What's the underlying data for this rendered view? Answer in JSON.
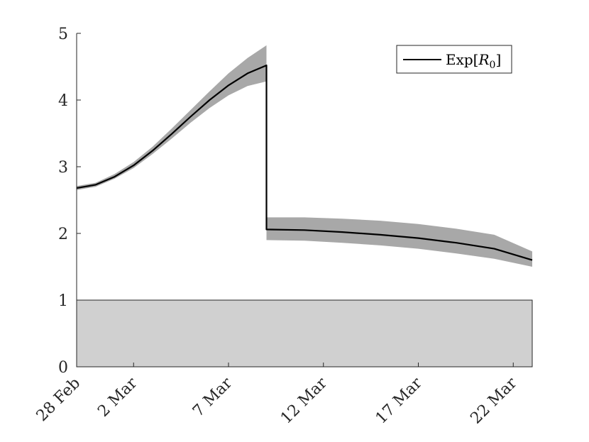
{
  "chart_data": {
    "type": "line",
    "title": "",
    "xlabel": "",
    "ylabel": "",
    "ylim": [
      0,
      5
    ],
    "yticks": [
      "0",
      "1",
      "2",
      "3",
      "4",
      "5"
    ],
    "xticks": [
      "28 Feb",
      "2 Mar",
      "7 Mar",
      "12 Mar",
      "17 Mar",
      "22 Mar"
    ],
    "grid": false,
    "legend_position": "top-right",
    "colors": {
      "line": "#000000",
      "band": "#a8a8a8",
      "threshold_region": "#d0d0d0",
      "axis": "#262626"
    },
    "threshold_region": {
      "from": 0,
      "to": 1
    },
    "series": [
      {
        "name": "Exp[R_0]",
        "segments": [
          {
            "points": [
              [
                "2020-02-28",
                2.68
              ],
              [
                "2020-02-29",
                2.73
              ],
              [
                "2020-03-01",
                2.85
              ],
              [
                "2020-03-02",
                3.02
              ],
              [
                "2020-03-03",
                3.24
              ],
              [
                "2020-03-04",
                3.49
              ],
              [
                "2020-03-05",
                3.75
              ],
              [
                "2020-03-06",
                4.0
              ],
              [
                "2020-03-07",
                4.22
              ],
              [
                "2020-03-08",
                4.4
              ],
              [
                "2020-03-09",
                4.52
              ]
            ],
            "lower": [
              2.65,
              2.7,
              2.82,
              2.98,
              3.19,
              3.42,
              3.66,
              3.88,
              4.07,
              4.21,
              4.28
            ],
            "upper": [
              2.71,
              2.76,
              2.89,
              3.07,
              3.3,
              3.57,
              3.85,
              4.13,
              4.4,
              4.63,
              4.82
            ]
          },
          {
            "points": [
              [
                "2020-03-09",
                2.06
              ],
              [
                "2020-03-11",
                2.05
              ],
              [
                "2020-03-13",
                2.02
              ],
              [
                "2020-03-15",
                1.98
              ],
              [
                "2020-03-17",
                1.93
              ],
              [
                "2020-03-19",
                1.86
              ],
              [
                "2020-03-21",
                1.77
              ],
              [
                "2020-03-23",
                1.6
              ]
            ],
            "lower": [
              1.9,
              1.89,
              1.86,
              1.82,
              1.77,
              1.7,
              1.62,
              1.5
            ],
            "upper": [
              2.24,
              2.24,
              2.22,
              2.19,
              2.14,
              2.07,
              1.98,
              1.73
            ]
          }
        ]
      }
    ]
  },
  "legend": {
    "label_prefix": "Exp[",
    "label_var": "R",
    "label_sub": "0",
    "label_suffix": "]"
  }
}
